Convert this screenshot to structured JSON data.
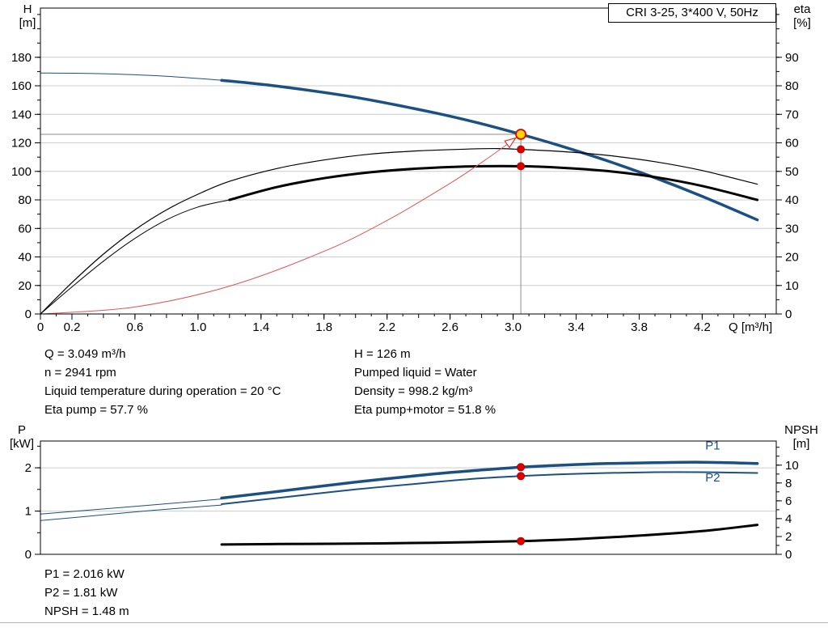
{
  "colors": {
    "curve_blue": "#1c4f82",
    "curve_black": "#000000",
    "system_curve_red": "#e05555",
    "duty_point_fill": "#ffd800",
    "duty_point_stroke": "#e00000",
    "marker_red": "#e00000"
  },
  "info_panel": {
    "left": [
      "Q = 3.049 m³/h",
      "n = 2941 rpm",
      "Liquid temperature during operation = 20 °C",
      "Eta pump = 57.7 %"
    ],
    "right": [
      "H = 126 m",
      "Pumped liquid = Water",
      "Density = 998.2 kg/m³",
      "Eta pump+motor = 51.8 %"
    ]
  },
  "results_panel": [
    "P1 = 2.016 kW",
    "P2 = 1.81 kW",
    "NPSH = 1.48 m"
  ],
  "chart_data": [
    {
      "id": "qh-chart",
      "type": "line",
      "title": "CRI 3-25, 3*400 V, 50Hz",
      "x_axis": {
        "label": "Q [m³/h]",
        "min": 0,
        "max": 4.67,
        "minor_step": 0.1,
        "ticks": [
          "0",
          "0.2",
          "0.6",
          "1.0",
          "1.4",
          "1.8",
          "2.2",
          "2.6",
          "3.0",
          "3.4",
          "3.8",
          "4.2"
        ]
      },
      "left_axis": {
        "label": "H [m]",
        "label_lines": [
          "H",
          "[m]"
        ],
        "min": 0,
        "max": 214.5,
        "minor_step": 10,
        "grid": true,
        "ticks": [
          "0",
          "20",
          "40",
          "60",
          "80",
          "100",
          "120",
          "140",
          "160",
          "180"
        ]
      },
      "right_axis": {
        "label": "eta [%]",
        "label_lines": [
          "eta",
          "[%]"
        ],
        "min": 0,
        "max": 107.25,
        "minor_step": 5,
        "ticks": [
          "0",
          "10",
          "20",
          "30",
          "40",
          "50",
          "60",
          "70",
          "80",
          "90"
        ]
      },
      "series": [
        {
          "name": "head-curve-extension",
          "axis": "left",
          "color": "#1c4f82",
          "width": 1,
          "points": [
            [
              0,
              169
            ],
            [
              0.4,
              168.5
            ],
            [
              0.8,
              166.7
            ],
            [
              1.15,
              163.9
            ]
          ]
        },
        {
          "name": "head-curve",
          "axis": "left",
          "color": "#1c4f82",
          "width": 3.5,
          "points": [
            [
              1.15,
              163.9
            ],
            [
              1.5,
              159.8
            ],
            [
              2.0,
              151.9
            ],
            [
              2.5,
              141.1
            ],
            [
              2.8,
              133.4
            ],
            [
              3.049,
              126
            ],
            [
              3.3,
              117.9
            ],
            [
              3.6,
              107.3
            ],
            [
              3.9,
              95.5
            ],
            [
              4.2,
              82.5
            ],
            [
              4.55,
              66.0
            ]
          ]
        },
        {
          "name": "eta-pump-curve",
          "axis": "right",
          "color": "#000000",
          "width": 1.2,
          "points": [
            [
              0,
              0
            ],
            [
              0.2,
              11
            ],
            [
              0.4,
              21
            ],
            [
              0.6,
              29.5
            ],
            [
              0.8,
              36.5
            ],
            [
              1.0,
              42
            ],
            [
              1.2,
              46.5
            ],
            [
              1.5,
              51
            ],
            [
              1.8,
              54
            ],
            [
              2.1,
              56.1
            ],
            [
              2.4,
              57.2
            ],
            [
              2.7,
              57.8
            ],
            [
              2.9,
              58
            ],
            [
              3.049,
              57.7
            ],
            [
              3.3,
              57
            ],
            [
              3.6,
              55.6
            ],
            [
              3.9,
              53.4
            ],
            [
              4.2,
              50.3
            ],
            [
              4.55,
              45.5
            ]
          ]
        },
        {
          "name": "eta-pump-motor-extension",
          "axis": "right",
          "color": "#000000",
          "width": 1,
          "points": [
            [
              0,
              0
            ],
            [
              0.2,
              9.5
            ],
            [
              0.4,
              18.5
            ],
            [
              0.6,
              26.5
            ],
            [
              0.8,
              33
            ],
            [
              1.0,
              37.5
            ],
            [
              1.2,
              40
            ]
          ]
        },
        {
          "name": "eta-pump-motor-curve",
          "axis": "right",
          "color": "#000000",
          "width": 3,
          "points": [
            [
              1.2,
              40
            ],
            [
              1.5,
              44.5
            ],
            [
              1.8,
              47.6
            ],
            [
              2.1,
              49.7
            ],
            [
              2.4,
              51
            ],
            [
              2.7,
              51.7
            ],
            [
              3.049,
              51.8
            ],
            [
              3.3,
              51.3
            ],
            [
              3.6,
              50.1
            ],
            [
              3.9,
              48
            ],
            [
              4.2,
              44.9
            ],
            [
              4.55,
              40
            ]
          ]
        },
        {
          "name": "system-curve",
          "axis": "left",
          "color": "#e05555",
          "width": 1,
          "arrow_end": true,
          "points": [
            [
              0,
              0
            ],
            [
              0.6,
              4.9
            ],
            [
              1.2,
              19.5
            ],
            [
              1.8,
              43.9
            ],
            [
              2.2,
              65.6
            ],
            [
              2.6,
              91.6
            ],
            [
              2.85,
              110.1
            ],
            [
              3.049,
              126
            ]
          ]
        }
      ],
      "crosshair": {
        "q": 3.049,
        "value": 126,
        "axis": "left"
      },
      "markers": [
        {
          "name": "duty-point",
          "q": 3.049,
          "value": 126,
          "axis": "left",
          "style": "duty"
        },
        {
          "name": "eta-pump-point",
          "q": 3.049,
          "value": 57.7,
          "axis": "right",
          "style": "dot"
        },
        {
          "name": "eta-pump-motor-point",
          "q": 3.049,
          "value": 51.8,
          "axis": "right",
          "style": "dot"
        }
      ]
    },
    {
      "id": "power-chart",
      "type": "line",
      "x_axis": {
        "label": "",
        "min": 0,
        "max": 4.67,
        "minor_step": null,
        "ticks": []
      },
      "left_axis": {
        "label": "P [kW]",
        "label_lines": [
          "P",
          "[kW]"
        ],
        "min": 0,
        "max": 2.62,
        "minor_step": 0.5,
        "grid": true,
        "ticks": [
          "0",
          "1",
          "2"
        ]
      },
      "right_axis": {
        "label": "NPSH [m]",
        "label_lines": [
          "NPSH",
          "[m]"
        ],
        "min": 0,
        "max": 12.7,
        "minor_step": 1,
        "ticks": [
          "0",
          "2",
          "4",
          "6",
          "8",
          "10"
        ]
      },
      "series": [
        {
          "name": "p1-curve-extension",
          "axis": "left",
          "color": "#1c4f82",
          "width": 1,
          "points": [
            [
              0,
              0.93
            ],
            [
              0.3,
              1.02
            ],
            [
              0.6,
              1.11
            ],
            [
              0.9,
              1.2
            ],
            [
              1.15,
              1.28
            ]
          ]
        },
        {
          "name": "p1-curve",
          "axis": "left",
          "color": "#1c4f82",
          "width": 3.5,
          "points": [
            [
              1.15,
              1.3
            ],
            [
              1.5,
              1.45
            ],
            [
              2.0,
              1.67
            ],
            [
              2.5,
              1.86
            ],
            [
              2.8,
              1.95
            ],
            [
              3.049,
              2.016
            ],
            [
              3.3,
              2.06
            ],
            [
              3.6,
              2.1
            ],
            [
              3.9,
              2.12
            ],
            [
              4.2,
              2.13
            ],
            [
              4.55,
              2.1
            ]
          ]
        },
        {
          "name": "p2-curve-extension",
          "axis": "left",
          "color": "#1c4f82",
          "width": 1,
          "points": [
            [
              0,
              0.78
            ],
            [
              0.3,
              0.88
            ],
            [
              0.6,
              0.98
            ],
            [
              0.9,
              1.07
            ],
            [
              1.15,
              1.14
            ]
          ]
        },
        {
          "name": "p2-curve",
          "axis": "left",
          "color": "#1c4f82",
          "width": 2,
          "points": [
            [
              1.15,
              1.16
            ],
            [
              1.5,
              1.3
            ],
            [
              2.0,
              1.5
            ],
            [
              2.5,
              1.67
            ],
            [
              2.8,
              1.76
            ],
            [
              3.049,
              1.81
            ],
            [
              3.3,
              1.85
            ],
            [
              3.6,
              1.88
            ],
            [
              3.9,
              1.9
            ],
            [
              4.2,
              1.9
            ],
            [
              4.55,
              1.88
            ]
          ]
        },
        {
          "name": "npsh-curve",
          "axis": "right",
          "color": "#000000",
          "width": 3,
          "points": [
            [
              1.15,
              1.1
            ],
            [
              1.5,
              1.15
            ],
            [
              2.0,
              1.2
            ],
            [
              2.5,
              1.3
            ],
            [
              3.049,
              1.48
            ],
            [
              3.4,
              1.7
            ],
            [
              3.8,
              2.1
            ],
            [
              4.2,
              2.6
            ],
            [
              4.55,
              3.3
            ]
          ]
        }
      ],
      "markers": [
        {
          "name": "p1-point",
          "q": 3.049,
          "value": 2.016,
          "axis": "left",
          "style": "dot"
        },
        {
          "name": "p2-point",
          "q": 3.049,
          "value": 1.81,
          "axis": "left",
          "style": "dot"
        },
        {
          "name": "npsh-point",
          "q": 3.049,
          "value": 1.48,
          "axis": "right",
          "style": "dot"
        }
      ],
      "annotations": [
        {
          "text": "P1",
          "q": 4.22,
          "value": 2.42,
          "axis": "left",
          "color": "#1c4f82"
        },
        {
          "text": "P2",
          "q": 4.22,
          "value": 1.68,
          "axis": "left",
          "color": "#1c4f82"
        }
      ]
    }
  ]
}
